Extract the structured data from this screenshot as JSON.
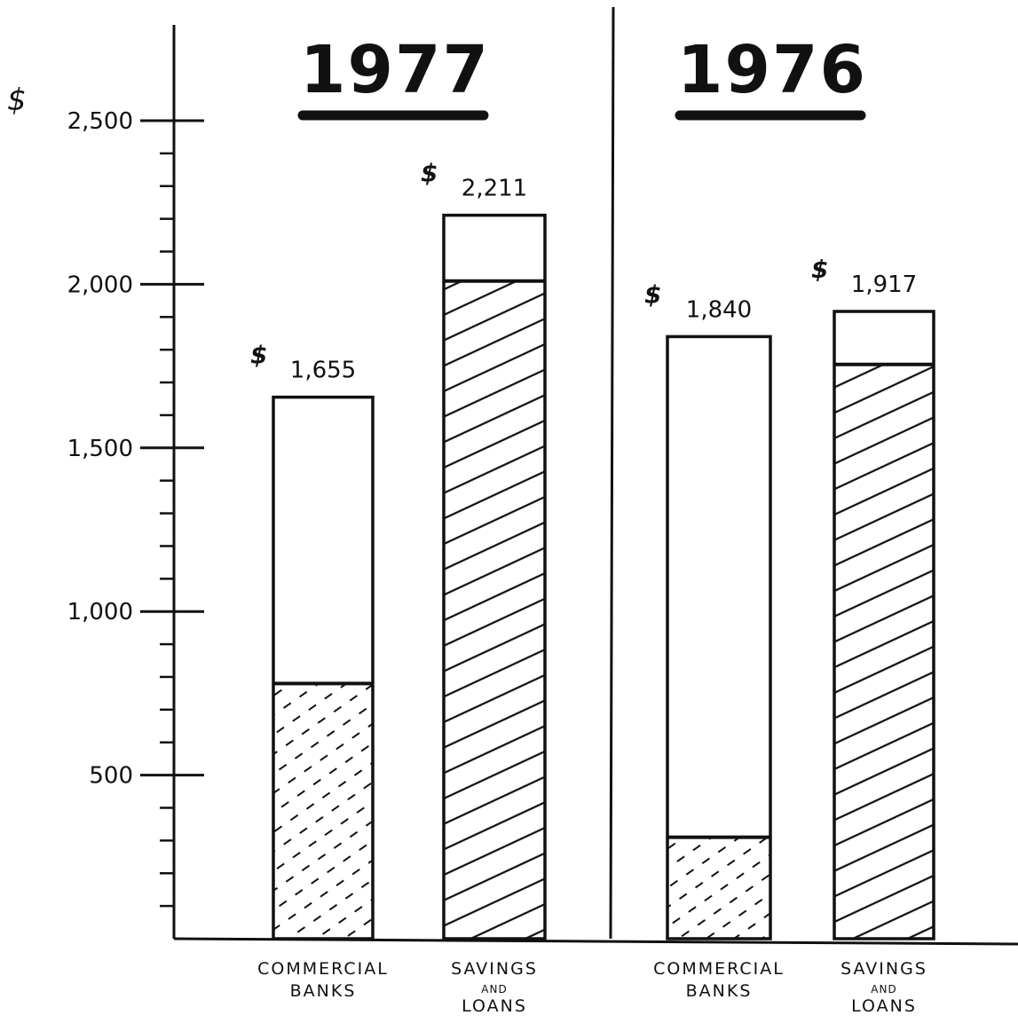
{
  "chart_data": {
    "type": "bar",
    "stacked": true,
    "title": "",
    "xlabel": "",
    "ylabel": "$",
    "ylim": [
      0,
      2500
    ],
    "yticks": [
      500,
      1000,
      1500,
      2000,
      2500
    ],
    "ytick_labels": [
      "500",
      "1,000",
      "1,500",
      "2,000",
      "2,500"
    ],
    "grid": false,
    "currency_symbol": "$",
    "groups": [
      {
        "title": "1977",
        "bars": [
          {
            "category": [
              "COMMERCIAL",
              "BANKS"
            ],
            "total": 1655,
            "total_label": "1,655",
            "hatched_lower": 780,
            "hatch": "dashed"
          },
          {
            "category": [
              "SAVINGS",
              "AND",
              "LOANS"
            ],
            "total": 2211,
            "total_label": "2,211",
            "hatched_lower": 2010,
            "hatch": "solid"
          }
        ]
      },
      {
        "title": "1976",
        "bars": [
          {
            "category": [
              "COMMERCIAL",
              "BANKS"
            ],
            "total": 1840,
            "total_label": "1,840",
            "hatched_lower": 310,
            "hatch": "dashed"
          },
          {
            "category": [
              "SAVINGS",
              "AND",
              "LOANS"
            ],
            "total": 1917,
            "total_label": "1,917",
            "hatched_lower": 1755,
            "hatch": "solid"
          }
        ]
      }
    ],
    "colors": {
      "ink": "#111111",
      "background": "#ffffff"
    }
  }
}
